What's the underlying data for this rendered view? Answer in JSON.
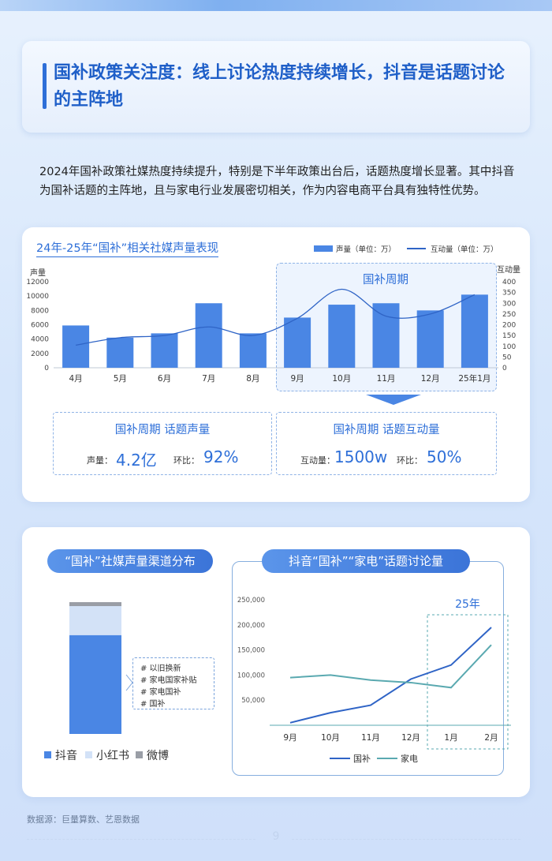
{
  "header": {
    "title": "国补政策关注度：线上讨论热度持续增长，抖音是话题讨论的主阵地",
    "intro": "2024年国补政策社媒热度持续提升，特别是下半年政策出台后，话题热度增长显著。其中抖音为国补话题的主阵地，且与家电行业发展密切相关，作为内容电商平台具有独特性优势。"
  },
  "chart_data": [
    {
      "type": "bar",
      "title": "24年-25年“国补”相关社媒声量表现",
      "categories": [
        "4月",
        "5月",
        "6月",
        "7月",
        "8月",
        "9月",
        "10月",
        "11月",
        "12月",
        "25年1月"
      ],
      "series": [
        {
          "name": "声量（单位：万）",
          "type": "bar",
          "axis": "left",
          "values": [
            5900,
            4200,
            4800,
            9000,
            4800,
            7000,
            8800,
            9000,
            8000,
            10200
          ]
        },
        {
          "name": "互动量（单位：万）",
          "type": "line",
          "axis": "right",
          "values": [
            105,
            140,
            150,
            190,
            150,
            230,
            365,
            240,
            250,
            340
          ]
        }
      ],
      "ylabel": "声量",
      "y2label": "互动量",
      "ylim": [
        0,
        12000
      ],
      "yticks": [
        "0",
        "2000",
        "4000",
        "6000",
        "8000",
        "10000",
        "12000"
      ],
      "y2lim": [
        0,
        400
      ],
      "y2ticks": [
        "0",
        "50",
        "100",
        "150",
        "200",
        "250",
        "300",
        "350",
        "400"
      ],
      "highlight": {
        "label": "国补周期",
        "from": "9月",
        "to": "25年1月"
      },
      "colors": {
        "bar": "#4a86e4",
        "line": "#2f64c6"
      }
    },
    {
      "type": "bar",
      "title": "“国补”社媒声量渠道分布",
      "stacked": true,
      "categories": [
        ""
      ],
      "series": [
        {
          "name": "抖音",
          "values": [
            75
          ]
        },
        {
          "name": "小红书",
          "values": [
            22
          ]
        },
        {
          "name": "微博",
          "values": [
            3
          ]
        }
      ],
      "colors": {
        "抖音": "#4a86e4",
        "小红书": "#d3e2f7",
        "微博": "#9a9ea6"
      }
    },
    {
      "type": "line",
      "title": "抖音“国补”“家电”话题讨论量",
      "x": [
        "9月",
        "10月",
        "11月",
        "12月",
        "1月",
        "2月"
      ],
      "series": [
        {
          "name": "国补",
          "values": [
            5000,
            25000,
            40000,
            92000,
            120000,
            195000
          ]
        },
        {
          "name": "家电",
          "values": [
            95000,
            100000,
            90000,
            85000,
            75000,
            160000
          ]
        }
      ],
      "ylim": [
        0,
        250000
      ],
      "yticks": [
        "50,000",
        "100,000",
        "150,000",
        "200,000",
        "250,000"
      ],
      "highlight": {
        "label": "25年",
        "from": "1月",
        "to": "2月"
      },
      "colors": {
        "国补": "#2f64c6",
        "家电": "#5aa9b0"
      }
    }
  ],
  "kpis": [
    {
      "title": "国补周期 话题声量",
      "label1": "声量：",
      "value1": "4.2亿",
      "label2": "环比：",
      "value2": "92%"
    },
    {
      "title": "国补周期 话题互动量",
      "label1": "互动量：",
      "value1": "1500w",
      "label2": "环比：",
      "value2": "50%"
    }
  ],
  "channel": {
    "tags": [
      "# 以旧换新",
      "# 家电国家补贴",
      "# 家电国补",
      "# 国补"
    ],
    "legend": [
      "抖音",
      "小红书",
      "微博"
    ]
  },
  "footer": {
    "source": "数据源：巨量算数、艺恩数据",
    "page": "9"
  }
}
